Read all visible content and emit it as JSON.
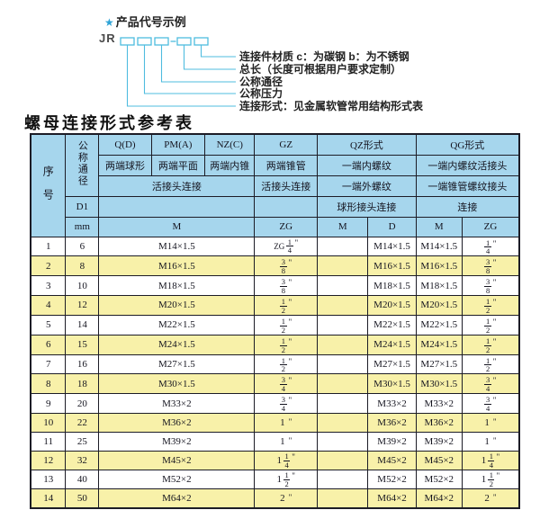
{
  "diagram": {
    "star": "★",
    "heading": "产品代号示例",
    "prefix": "JR",
    "labels": [
      "连接件材质  c：为碳钢  b：为不锈钢",
      "总长（长度可根据用户要求定制）",
      "公称通径",
      "公称压力",
      "连接形式：见金属软管常用结构形式表"
    ]
  },
  "table_title": "螺母连接形式参考表",
  "table": {
    "header": {
      "seq": "序号",
      "dn": "公称通径",
      "d1": "D1",
      "mm": "mm",
      "col_q": "Q(D)",
      "col_pm": "PM(A)",
      "col_nz": "NZ(C)",
      "col_gz": "GZ",
      "col_qz": "QZ形式",
      "col_qg": "QG形式",
      "q_sub": "两端球形",
      "pm_sub": "两端平面",
      "nz_sub": "两端内锥",
      "gz_sub": "两端锥管",
      "qz_sub1": "一端内螺纹",
      "qg_sub1": "一端内螺纹活接头",
      "left_conn": "活接头连接",
      "gz_conn": "活接头连接",
      "qz_sub2": "一端外螺纹",
      "qg_sub2": "一端锥管螺纹接头",
      "qz_conn": "球形接头连接",
      "qg_conn": "连接",
      "m_merged": "M",
      "zg_gz": "ZG",
      "qz_m": "M",
      "qz_d": "D",
      "qg_m": "M",
      "qg_zg": "ZG"
    },
    "rows": [
      {
        "seq": "1",
        "dn": "6",
        "m": "M14×1.5",
        "gz_zg": {
          "pre": "ZG",
          "num": "1",
          "den": "4",
          "u": "\""
        },
        "qz_m": "",
        "qz_d": "M14×1.5",
        "qg_m": "M14×1.5",
        "qg_zg": {
          "num": "1",
          "den": "4",
          "u": "\""
        }
      },
      {
        "seq": "2",
        "dn": "8",
        "m": "M16×1.5",
        "gz_zg": {
          "num": "3",
          "den": "8",
          "u": "\""
        },
        "qz_m": "",
        "qz_d": "M16×1.5",
        "qg_m": "M16×1.5",
        "qg_zg": {
          "num": "3",
          "den": "8",
          "u": "\""
        }
      },
      {
        "seq": "3",
        "dn": "10",
        "m": "M18×1.5",
        "gz_zg": {
          "num": "3",
          "den": "8",
          "u": "\""
        },
        "qz_m": "",
        "qz_d": "M18×1.5",
        "qg_m": "M18×1.5",
        "qg_zg": {
          "num": "3",
          "den": "8",
          "u": "\""
        }
      },
      {
        "seq": "4",
        "dn": "12",
        "m": "M20×1.5",
        "gz_zg": {
          "num": "1",
          "den": "2",
          "u": "\""
        },
        "qz_m": "",
        "qz_d": "M20×1.5",
        "qg_m": "M20×1.5",
        "qg_zg": {
          "num": "1",
          "den": "2",
          "u": "\""
        }
      },
      {
        "seq": "5",
        "dn": "14",
        "m": "M22×1.5",
        "gz_zg": {
          "num": "1",
          "den": "2",
          "u": "\""
        },
        "qz_m": "",
        "qz_d": "M22×1.5",
        "qg_m": "M22×1.5",
        "qg_zg": {
          "num": "1",
          "den": "2",
          "u": "\""
        }
      },
      {
        "seq": "6",
        "dn": "15",
        "m": "M24×1.5",
        "gz_zg": {
          "num": "1",
          "den": "2",
          "u": "\""
        },
        "qz_m": "",
        "qz_d": "M24×1.5",
        "qg_m": "M24×1.5",
        "qg_zg": {
          "num": "1",
          "den": "2",
          "u": "\""
        }
      },
      {
        "seq": "7",
        "dn": "16",
        "m": "M27×1.5",
        "gz_zg": {
          "num": "1",
          "den": "2",
          "u": "\""
        },
        "qz_m": "",
        "qz_d": "M27×1.5",
        "qg_m": "M27×1.5",
        "qg_zg": {
          "num": "1",
          "den": "2",
          "u": "\""
        }
      },
      {
        "seq": "8",
        "dn": "18",
        "m": "M30×1.5",
        "gz_zg": {
          "num": "3",
          "den": "4",
          "u": "\""
        },
        "qz_m": "",
        "qz_d": "M30×1.5",
        "qg_m": "M30×1.5",
        "qg_zg": {
          "num": "3",
          "den": "4",
          "u": "\""
        }
      },
      {
        "seq": "9",
        "dn": "20",
        "m": "M33×2",
        "gz_zg": {
          "num": "3",
          "den": "4",
          "u": "\""
        },
        "qz_m": "",
        "qz_d": "M33×2",
        "qg_m": "M33×2",
        "qg_zg": {
          "num": "3",
          "den": "4",
          "u": "\""
        }
      },
      {
        "seq": "10",
        "dn": "22",
        "m": "M36×2",
        "gz_zg": {
          "whole": "1",
          "u": "\""
        },
        "qz_m": "",
        "qz_d": "M36×2",
        "qg_m": "M36×2",
        "qg_zg": {
          "whole": "1",
          "u": "\""
        }
      },
      {
        "seq": "11",
        "dn": "25",
        "m": "M39×2",
        "gz_zg": {
          "whole": "1",
          "u": "\""
        },
        "qz_m": "",
        "qz_d": "M39×2",
        "qg_m": "M39×2",
        "qg_zg": {
          "whole": "1",
          "u": "\""
        }
      },
      {
        "seq": "12",
        "dn": "32",
        "m": "M45×2",
        "gz_zg": {
          "whole": "1",
          "num": "1",
          "den": "4",
          "u": "\""
        },
        "qz_m": "",
        "qz_d": "M45×2",
        "qg_m": "M45×2",
        "qg_zg": {
          "whole": "1",
          "num": "1",
          "den": "4",
          "u": "\""
        }
      },
      {
        "seq": "13",
        "dn": "40",
        "m": "M52×2",
        "gz_zg": {
          "whole": "1",
          "num": "1",
          "den": "2",
          "u": "\""
        },
        "qz_m": "",
        "qz_d": "M52×2",
        "qg_m": "M52×2",
        "qg_zg": {
          "whole": "1",
          "num": "1",
          "den": "2",
          "u": "\""
        }
      },
      {
        "seq": "14",
        "dn": "50",
        "m": "M64×2",
        "gz_zg": {
          "whole": "2",
          "u": "\""
        },
        "qz_m": "",
        "qz_d": "M64×2",
        "qg_m": "M64×2",
        "qg_zg": {
          "whole": "2",
          "u": "\""
        }
      }
    ]
  },
  "colors": {
    "accent_cyan": "#4fbcdf",
    "star_blue": "#2ea3d6",
    "header_blue": "#a6d6ed",
    "row_yellow": "#f8f1a9",
    "border_dark": "#1c1c26"
  }
}
